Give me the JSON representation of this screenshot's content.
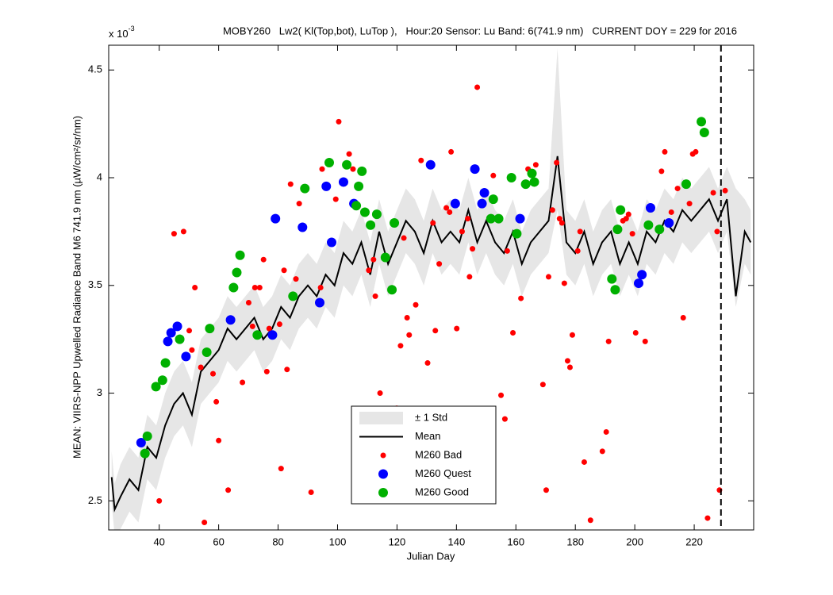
{
  "chart_data": {
    "type": "line",
    "title": "MOBY260   Lw2( Kl(Top,bot), LuTop ),   Hour:20 Sensor: Lu Band: 6(741.9 nm)   CURRENT DOY = 229 for 2016",
    "x_label": "Julian Day",
    "y_label": "MEAN: VIIRS-NPP Upwelled Radiance Band M6 741.9 nm (µW/cm²/sr/nm)",
    "y_multiplier": "x 10",
    "y_multiplier_exponent": "-3",
    "xlim": [
      23,
      240
    ],
    "ylim": [
      2.365,
      4.615
    ],
    "xticks": [
      40,
      60,
      80,
      100,
      120,
      140,
      160,
      180,
      200,
      220
    ],
    "yticks": [
      2.5,
      3,
      3.5,
      4,
      4.5
    ],
    "reference_line_x": 229,
    "legend_position": "bottom-center",
    "series": [
      {
        "name": "± 1 Std",
        "kind": "band",
        "color": "#e6e6e6",
        "x": [
          24,
          25,
          27,
          30,
          33,
          36,
          39,
          42,
          45,
          48,
          51,
          54,
          57,
          60,
          63,
          66,
          69,
          72,
          75,
          78,
          81,
          84,
          87,
          90,
          93,
          96,
          99,
          102,
          105,
          108,
          111,
          114,
          117,
          120,
          123,
          126,
          129,
          132,
          135,
          138,
          141,
          144,
          147,
          150,
          153,
          156,
          159,
          162,
          165,
          168,
          171,
          174,
          177,
          180,
          183,
          186,
          189,
          192,
          195,
          198,
          201,
          204,
          207,
          210,
          213,
          216,
          219,
          222,
          225,
          228,
          231,
          234,
          237,
          239
        ],
        "lower": [
          2.49,
          2.34,
          2.37,
          2.45,
          2.4,
          2.6,
          2.55,
          2.7,
          2.8,
          2.85,
          2.75,
          2.95,
          3.0,
          3.05,
          3.15,
          3.1,
          3.15,
          3.2,
          3.1,
          3.15,
          3.25,
          3.2,
          3.3,
          3.35,
          3.3,
          3.4,
          3.35,
          3.5,
          3.45,
          3.55,
          3.4,
          3.6,
          3.45,
          3.55,
          3.65,
          3.6,
          3.5,
          3.65,
          3.55,
          3.6,
          3.55,
          3.7,
          3.55,
          3.65,
          3.55,
          3.5,
          3.6,
          3.45,
          3.55,
          3.6,
          3.65,
          3.85,
          3.55,
          3.5,
          3.6,
          3.45,
          3.55,
          3.6,
          3.45,
          3.55,
          3.45,
          3.6,
          3.55,
          3.65,
          3.6,
          3.7,
          3.65,
          3.7,
          3.75,
          3.65,
          3.75,
          3.4,
          3.6,
          3.55
        ],
        "upper": [
          2.73,
          2.58,
          2.67,
          2.75,
          2.7,
          2.9,
          2.85,
          3.0,
          3.1,
          3.15,
          3.05,
          3.25,
          3.3,
          3.35,
          3.45,
          3.4,
          3.45,
          3.5,
          3.4,
          3.45,
          3.55,
          3.5,
          3.6,
          3.65,
          3.6,
          3.7,
          3.65,
          3.8,
          3.75,
          3.85,
          3.7,
          3.9,
          3.75,
          3.85,
          3.95,
          3.9,
          3.8,
          3.95,
          3.85,
          3.9,
          3.85,
          4.0,
          3.85,
          3.95,
          3.85,
          3.8,
          3.9,
          3.75,
          3.85,
          3.9,
          3.95,
          4.6,
          3.85,
          3.8,
          3.9,
          3.75,
          3.85,
          3.9,
          3.75,
          3.85,
          3.75,
          3.9,
          3.85,
          3.95,
          3.9,
          4.0,
          3.95,
          4.0,
          4.05,
          3.95,
          4.05,
          3.95,
          3.9,
          3.85
        ]
      },
      {
        "name": "Mean",
        "kind": "line",
        "color": "#000000",
        "x": [
          24,
          25,
          27,
          30,
          33,
          36,
          39,
          42,
          45,
          48,
          51,
          54,
          57,
          60,
          63,
          66,
          69,
          72,
          75,
          78,
          81,
          84,
          87,
          90,
          93,
          96,
          99,
          102,
          105,
          108,
          111,
          114,
          117,
          120,
          123,
          126,
          129,
          132,
          135,
          138,
          141,
          144,
          147,
          150,
          153,
          156,
          159,
          162,
          165,
          168,
          171,
          174,
          177,
          180,
          183,
          186,
          189,
          192,
          195,
          198,
          201,
          204,
          207,
          210,
          213,
          216,
          219,
          222,
          225,
          228,
          231,
          234,
          237,
          239
        ],
        "values": [
          2.61,
          2.46,
          2.52,
          2.6,
          2.55,
          2.75,
          2.7,
          2.85,
          2.95,
          3.0,
          2.9,
          3.1,
          3.15,
          3.2,
          3.3,
          3.25,
          3.3,
          3.35,
          3.25,
          3.3,
          3.4,
          3.35,
          3.45,
          3.5,
          3.45,
          3.55,
          3.5,
          3.65,
          3.6,
          3.7,
          3.55,
          3.75,
          3.6,
          3.7,
          3.8,
          3.75,
          3.65,
          3.8,
          3.7,
          3.75,
          3.7,
          3.85,
          3.7,
          3.8,
          3.7,
          3.65,
          3.75,
          3.6,
          3.7,
          3.75,
          3.8,
          4.1,
          3.7,
          3.65,
          3.75,
          3.6,
          3.7,
          3.75,
          3.6,
          3.7,
          3.6,
          3.75,
          3.7,
          3.8,
          3.75,
          3.85,
          3.8,
          3.85,
          3.9,
          3.8,
          3.9,
          3.45,
          3.75,
          3.7
        ]
      },
      {
        "name": "M260 Bad",
        "kind": "scatter",
        "color": "#ff0000",
        "marker_size": 3.5,
        "x": [
          40,
          45,
          48.2,
          50.1,
          51,
          52,
          54,
          55.2,
          58.1,
          59.2,
          60,
          63.2,
          68,
          70.1,
          71.4,
          72.2,
          73.8,
          75.1,
          76.2,
          77,
          80.5,
          81,
          82,
          83,
          84.2,
          86,
          87.1,
          91.1,
          94.3,
          94.8,
          99.4,
          100.4,
          103.9,
          105.2,
          110.5,
          112.1,
          112.7,
          114.3,
          119.9,
          121.2,
          122.3,
          123.4,
          124.1,
          126.3,
          128.1,
          130.3,
          132.1,
          132.9,
          134.2,
          136.6,
          137.7,
          138.2,
          140.1,
          141.9,
          143.8,
          144.4,
          145.4,
          147,
          152.4,
          155,
          156.3,
          157.1,
          159,
          161.7,
          164.1,
          166.7,
          169.1,
          170.2,
          171,
          172.3,
          173.7,
          174.7,
          175.5,
          176.3,
          177.4,
          178.2,
          179,
          180.8,
          181.6,
          183,
          185.1,
          189.1,
          190.4,
          191.2,
          196,
          197.1,
          197.9,
          199.2,
          200.3,
          203.5,
          209,
          210.1,
          212.3,
          214.4,
          216.3,
          218.4,
          219.5,
          220.5,
          224.5,
          226.4,
          227.7,
          228.5,
          230.4
        ],
        "values": [
          2.5,
          3.74,
          3.75,
          3.29,
          3.2,
          3.49,
          3.12,
          2.4,
          3.09,
          2.96,
          2.78,
          2.55,
          3.05,
          3.42,
          3.31,
          3.49,
          3.49,
          3.62,
          3.1,
          3.3,
          3.32,
          2.65,
          3.57,
          3.11,
          3.97,
          3.53,
          3.88,
          2.54,
          3.49,
          4.04,
          3.9,
          4.26,
          4.11,
          4.04,
          3.57,
          3.62,
          3.45,
          3.0,
          2.93,
          3.22,
          3.72,
          3.35,
          3.27,
          3.41,
          4.08,
          3.14,
          3.79,
          3.29,
          3.6,
          3.86,
          3.84,
          4.12,
          3.3,
          3.75,
          3.81,
          3.54,
          3.67,
          4.42,
          4.01,
          2.99,
          2.88,
          3.66,
          3.28,
          3.44,
          4.04,
          4.06,
          3.04,
          2.55,
          3.54,
          3.85,
          4.07,
          3.81,
          3.79,
          3.51,
          3.15,
          3.12,
          3.27,
          3.66,
          3.75,
          2.68,
          2.41,
          2.73,
          2.82,
          3.24,
          3.8,
          3.81,
          3.83,
          3.74,
          3.28,
          3.24,
          4.03,
          4.12,
          3.84,
          3.95,
          3.35,
          3.88,
          4.11,
          4.12,
          2.42,
          3.93,
          3.75,
          2.55,
          3.94
        ]
      },
      {
        "name": "M260 Quest",
        "kind": "scatter",
        "color": "#0000ff",
        "marker_size": 6,
        "x": [
          33.9,
          42.9,
          44,
          46.1,
          49,
          64,
          78.1,
          79.1,
          88.2,
          94,
          96.2,
          98,
          102,
          105.5,
          131.3,
          139.6,
          146.2,
          148.6,
          149.4,
          161.4,
          201.3,
          202.4,
          205.3,
          211.5
        ],
        "values": [
          2.77,
          3.24,
          3.28,
          3.31,
          3.17,
          3.34,
          3.27,
          3.81,
          3.77,
          3.42,
          3.96,
          3.7,
          3.98,
          3.88,
          4.06,
          3.88,
          4.04,
          3.88,
          3.93,
          3.81,
          3.51,
          3.55,
          3.86,
          3.79
        ]
      },
      {
        "name": "M260 Good",
        "kind": "scatter",
        "color": "#00b000",
        "marker_size": 6,
        "x": [
          35.2,
          36,
          38.9,
          41.1,
          42.1,
          46.9,
          56,
          57,
          65,
          66.1,
          67.2,
          73,
          85,
          89,
          97.2,
          103.1,
          106.3,
          107.1,
          108.2,
          109.2,
          111.1,
          113.2,
          116.1,
          118.3,
          119.1,
          151.6,
          152.4,
          154.2,
          158.5,
          160.3,
          163.3,
          165.4,
          166.2,
          192.3,
          193.4,
          194.2,
          195.2,
          204.6,
          208.3,
          217.3,
          222.4,
          223.4
        ],
        "values": [
          2.72,
          2.8,
          3.03,
          3.06,
          3.14,
          3.25,
          3.19,
          3.3,
          3.49,
          3.56,
          3.64,
          3.27,
          3.45,
          3.95,
          4.07,
          4.06,
          3.87,
          3.96,
          4.03,
          3.84,
          3.78,
          3.83,
          3.63,
          3.48,
          3.79,
          3.81,
          3.9,
          3.81,
          4.0,
          3.74,
          3.97,
          4.02,
          3.98,
          3.53,
          3.48,
          3.76,
          3.85,
          3.78,
          3.76,
          3.97,
          4.26,
          4.21
        ]
      }
    ]
  }
}
